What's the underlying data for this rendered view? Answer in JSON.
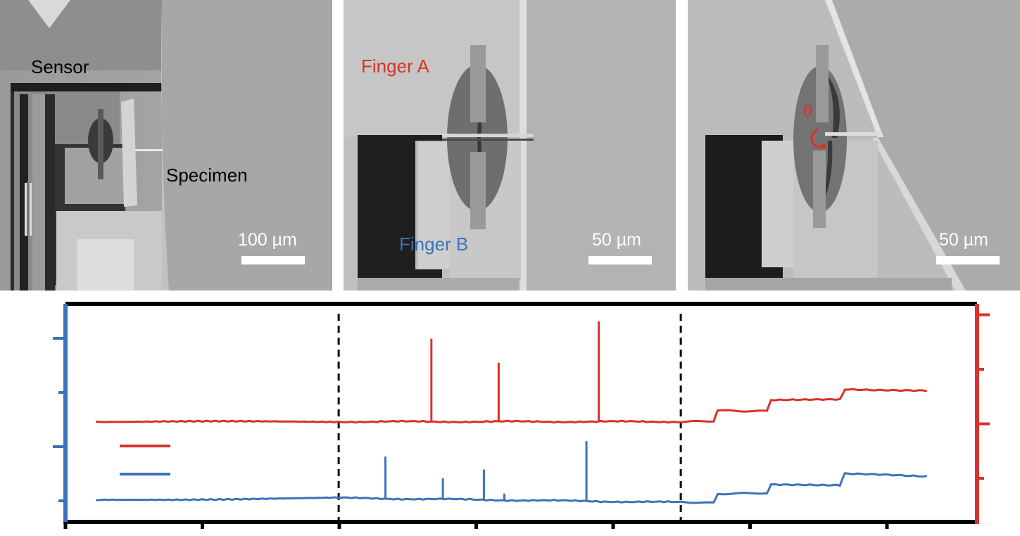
{
  "panels": [
    {
      "id": "a",
      "labels": {
        "sensor": "Sensor",
        "specimen": "Specimen"
      },
      "scale_bar": "100 µm"
    },
    {
      "id": "b",
      "labels": {
        "finger_a": "Finger A",
        "finger_b": "Finger B"
      },
      "scale_bar": "50 µm"
    },
    {
      "id": "c",
      "labels": {
        "theta": "θ"
      },
      "scale_bar": "50 µm"
    }
  ],
  "colors": {
    "red_series": "#d9312b",
    "blue_series": "#3b73b9",
    "axis": "#000000"
  },
  "chart_data": {
    "type": "line",
    "title": "",
    "xlabel": "",
    "ylabel_left": "",
    "ylabel_right": "",
    "x_ticks": 7,
    "left_ticks": 4,
    "right_ticks": 4,
    "xlim": [
      0,
      1
    ],
    "ylim_left": [
      0,
      1
    ],
    "ylim_right": [
      0,
      1
    ],
    "phase_boundaries_x": [
      0.333,
      0.75
    ],
    "legend": {
      "placement": "left",
      "entries": 2
    },
    "series": [
      {
        "color": "red",
        "axis": "right",
        "x": [
          0.037,
          0.333,
          0.75,
          0.79,
          0.795,
          0.855,
          0.86,
          0.944,
          0.95,
          1.05
        ],
        "y": [
          0.46,
          0.46,
          0.46,
          0.46,
          0.51,
          0.51,
          0.56,
          0.56,
          0.61,
          0.6
        ],
        "spikes": [
          {
            "x": 0.446,
            "peak": 0.84
          },
          {
            "x": 0.528,
            "peak": 0.73
          },
          {
            "x": 0.65,
            "peak": 0.92
          }
        ]
      },
      {
        "color": "blue",
        "axis": "left",
        "x": [
          0.037,
          0.333,
          0.75,
          0.79,
          0.795,
          0.855,
          0.86,
          0.944,
          0.95,
          1.05
        ],
        "y": [
          0.1,
          0.11,
          0.09,
          0.09,
          0.13,
          0.13,
          0.17,
          0.17,
          0.22,
          0.21
        ],
        "spikes": [
          {
            "x": 0.39,
            "peak": 0.3
          },
          {
            "x": 0.46,
            "peak": 0.2
          },
          {
            "x": 0.51,
            "peak": 0.24
          },
          {
            "x": 0.535,
            "peak": 0.13
          },
          {
            "x": 0.635,
            "peak": 0.37
          }
        ]
      }
    ]
  }
}
